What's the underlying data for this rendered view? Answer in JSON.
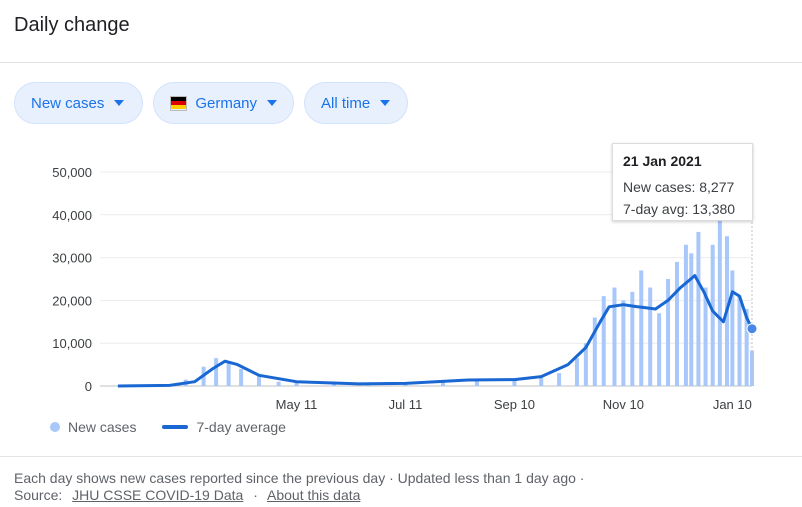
{
  "header": {
    "title": "Daily change"
  },
  "filters": {
    "metric": "New cases",
    "country": "Germany",
    "range": "All time"
  },
  "colors": {
    "accent": "#1a73e8",
    "bar": "#a8c7fa",
    "line": "#1967d2"
  },
  "tooltip": {
    "date": "21 Jan 2021",
    "new_cases_label": "New cases: 8,277",
    "avg_label": "7-day avg: 13,380"
  },
  "legend": {
    "new_cases": "New cases",
    "avg": "7-day average"
  },
  "footer": {
    "line1": "Each day shows new cases reported since the previous day · Updated less than 1 day ago ·",
    "source_label": "Source:",
    "source_link": "JHU CSSE COVID-19 Data",
    "separator": "·",
    "about_link": "About this data"
  },
  "chart_data": {
    "type": "bar",
    "y_ticks": [
      "50,000",
      "40,000",
      "30,000",
      "20,000",
      "10,000",
      "0"
    ],
    "y_tick_values": [
      50000,
      40000,
      30000,
      20000,
      10000,
      0
    ],
    "x_ticks": [
      "May 11",
      "Jul 11",
      "Sep 10",
      "Nov 10",
      "Jan 10"
    ],
    "ylim": [
      0,
      50000
    ],
    "grid": true,
    "series": [
      {
        "name": "New cases",
        "type": "bar",
        "x": [
          "2020-02-01",
          "2020-02-15",
          "2020-03-01",
          "2020-03-10",
          "2020-03-20",
          "2020-03-27",
          "2020-04-03",
          "2020-04-10",
          "2020-04-20",
          "2020-05-01",
          "2020-05-11",
          "2020-06-01",
          "2020-06-20",
          "2020-07-11",
          "2020-08-01",
          "2020-08-20",
          "2020-09-10",
          "2020-09-25",
          "2020-10-05",
          "2020-10-15",
          "2020-10-20",
          "2020-10-25",
          "2020-10-30",
          "2020-11-05",
          "2020-11-10",
          "2020-11-15",
          "2020-11-20",
          "2020-11-25",
          "2020-11-30",
          "2020-12-05",
          "2020-12-10",
          "2020-12-15",
          "2020-12-18",
          "2020-12-22",
          "2020-12-26",
          "2020-12-30",
          "2021-01-03",
          "2021-01-07",
          "2021-01-10",
          "2021-01-14",
          "2021-01-18",
          "2021-01-21"
        ],
        "values": [
          0,
          50,
          300,
          1500,
          4500,
          6500,
          5500,
          4000,
          2300,
          1000,
          800,
          500,
          600,
          700,
          900,
          1400,
          1500,
          2000,
          3000,
          6500,
          10000,
          16000,
          21000,
          23000,
          20000,
          22000,
          27000,
          23000,
          17000,
          25000,
          29000,
          33000,
          31000,
          36000,
          23000,
          33000,
          40000,
          35000,
          27000,
          21000,
          18000,
          8277
        ]
      },
      {
        "name": "7-day average",
        "type": "line",
        "x": [
          "2020-02-01",
          "2020-03-01",
          "2020-03-15",
          "2020-03-25",
          "2020-04-01",
          "2020-04-08",
          "2020-04-20",
          "2020-05-11",
          "2020-06-15",
          "2020-07-11",
          "2020-08-15",
          "2020-09-10",
          "2020-09-25",
          "2020-10-10",
          "2020-10-20",
          "2020-10-28",
          "2020-11-02",
          "2020-11-10",
          "2020-11-18",
          "2020-11-28",
          "2020-12-05",
          "2020-12-12",
          "2020-12-20",
          "2020-12-25",
          "2020-12-30",
          "2021-01-05",
          "2021-01-10",
          "2021-01-14",
          "2021-01-18",
          "2021-01-21"
        ],
        "values": [
          0,
          150,
          1000,
          4000,
          5800,
          5000,
          2500,
          1000,
          500,
          600,
          1400,
          1500,
          2200,
          5000,
          9000,
          15000,
          18500,
          19000,
          18500,
          18000,
          20000,
          23000,
          25800,
          22000,
          17500,
          15000,
          22000,
          21000,
          16000,
          13380
        ]
      }
    ]
  }
}
